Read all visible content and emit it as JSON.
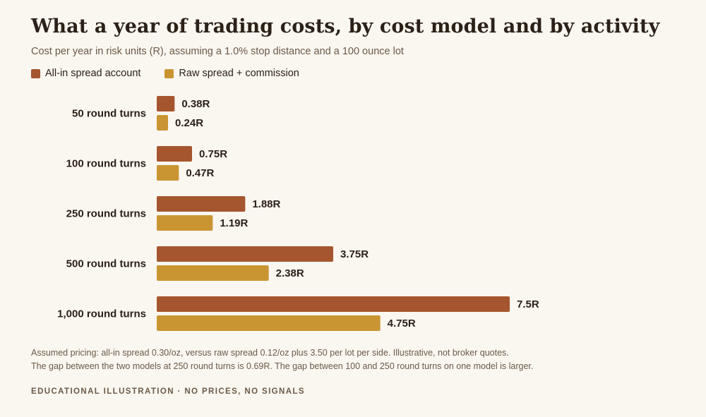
{
  "title": "What a year of trading costs, by cost model and by activity",
  "subtitle": "Cost per year in risk units (R), assuming a 1.0% stop distance and a 100 ounce lot",
  "colors": {
    "allin": "#a5562e",
    "raw": "#c99533"
  },
  "chart_data": {
    "type": "bar",
    "orientation": "horizontal",
    "categories": [
      "50 round turns",
      "100 round turns",
      "250 round turns",
      "500 round turns",
      "1,000 round turns"
    ],
    "series": [
      {
        "name": "All-in spread account",
        "values": [
          0.38,
          0.75,
          1.88,
          3.75,
          7.5
        ],
        "labels": [
          "0.38R",
          "0.75R",
          "1.88R",
          "3.75R",
          "7.5R"
        ]
      },
      {
        "name": "Raw spread + commission",
        "values": [
          0.24,
          0.47,
          1.19,
          2.38,
          4.75
        ],
        "labels": [
          "0.24R",
          "0.47R",
          "1.19R",
          "2.38R",
          "4.75R"
        ]
      }
    ],
    "xlim": [
      0,
      7.5
    ],
    "grid": false,
    "legend_position": "top-left"
  },
  "footnotes": [
    "Assumed pricing: all-in spread 0.30/oz, versus raw spread 0.12/oz plus 3.50 per lot per side. Illustrative, not broker quotes.",
    "The gap between the two models at 250 round turns is 0.69R. The gap between 100 and 250 round turns on one model is larger."
  ],
  "footer": "EDUCATIONAL ILLUSTRATION · NO PRICES, NO SIGNALS"
}
